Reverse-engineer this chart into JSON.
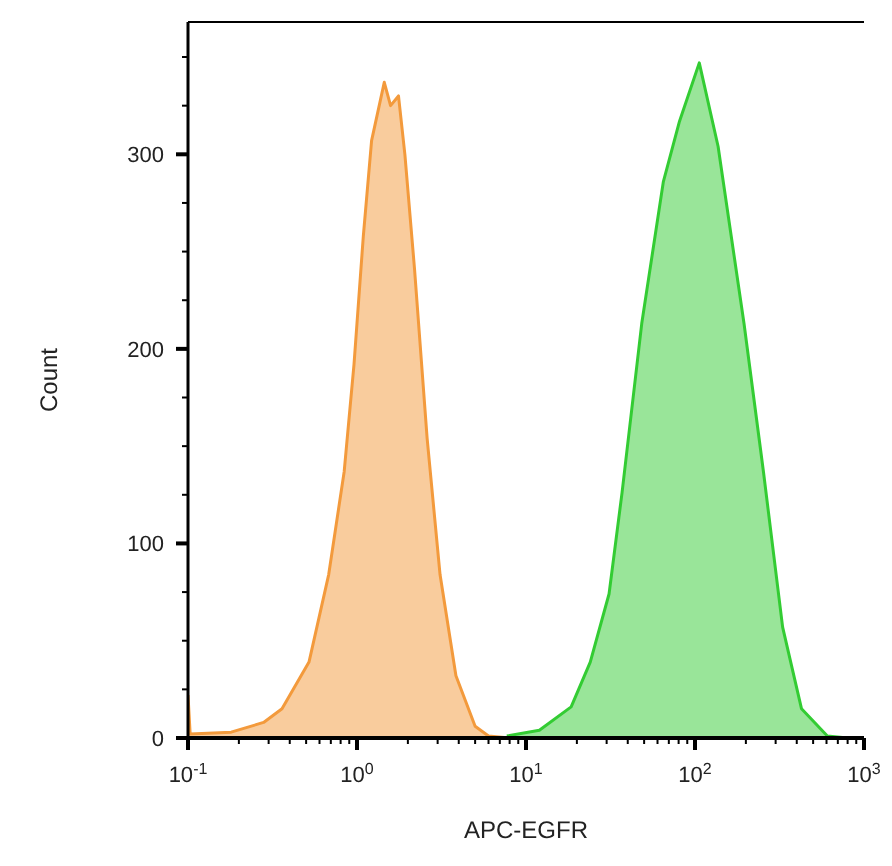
{
  "chart_data": {
    "type": "area",
    "xlabel": "APC-EGFR",
    "ylabel": "Count",
    "log": "x",
    "xlim": [
      0.1,
      1000
    ],
    "xticks": [
      {
        "value": 0.1,
        "label": "10$^{-1}$"
      },
      {
        "value": 0.2,
        "label": null
      },
      {
        "value": 0.3,
        "label": null
      },
      {
        "value": 0.4,
        "label": null
      },
      {
        "value": 0.5,
        "label": null
      },
      {
        "value": 0.6,
        "label": null
      },
      {
        "value": 0.7,
        "label": null
      },
      {
        "value": 0.8,
        "label": null
      },
      {
        "value": 0.9,
        "label": null
      },
      {
        "value": 1,
        "label": "10$^{0}$"
      },
      {
        "value": 2,
        "label": null
      },
      {
        "value": 3,
        "label": null
      },
      {
        "value": 4,
        "label": null
      },
      {
        "value": 5,
        "label": null
      },
      {
        "value": 6,
        "label": null
      },
      {
        "value": 7,
        "label": null
      },
      {
        "value": 8,
        "label": null
      },
      {
        "value": 9,
        "label": null
      },
      {
        "value": 10,
        "label": "10$^{1}$"
      },
      {
        "value": 20,
        "label": null
      },
      {
        "value": 30,
        "label": null
      },
      {
        "value": 40,
        "label": null
      },
      {
        "value": 50,
        "label": null
      },
      {
        "value": 60,
        "label": null
      },
      {
        "value": 70,
        "label": null
      },
      {
        "value": 80,
        "label": null
      },
      {
        "value": 90,
        "label": null
      },
      {
        "value": 100,
        "label": "10$^{2}$"
      },
      {
        "value": 200,
        "label": null
      },
      {
        "value": 300,
        "label": null
      },
      {
        "value": 400,
        "label": null
      },
      {
        "value": 500,
        "label": null
      },
      {
        "value": 600,
        "label": null
      },
      {
        "value": 700,
        "label": null
      },
      {
        "value": 800,
        "label": null
      },
      {
        "value": 900,
        "label": null
      },
      {
        "value": 1000,
        "label": "10$^{3}$"
      }
    ],
    "ylim": [
      0,
      368
    ],
    "yticks": [
      0,
      {
        "value": 25,
        "label": null
      },
      {
        "value": 50,
        "label": null
      },
      {
        "value": 75,
        "label": null
      },
      100,
      {
        "value": 125,
        "label": null
      },
      {
        "value": 150,
        "label": null
      },
      {
        "value": 175,
        "label": null
      },
      200,
      {
        "value": 225,
        "label": null
      },
      {
        "value": 250,
        "label": null
      },
      {
        "value": 275,
        "label": null
      },
      300,
      {
        "value": 325,
        "label": null
      },
      {
        "value": 350,
        "label": null
      }
    ],
    "series": [
      {
        "color": "#f39a3c",
        "x": [
          0.1,
          0.103,
          0.18,
          0.28,
          0.36,
          0.52,
          0.68,
          0.84,
          0.96,
          1.09,
          1.22,
          1.45,
          1.58,
          1.76,
          1.92,
          2.19,
          2.6,
          3.1,
          3.85,
          5.0,
          6.0,
          8.0
        ],
        "values": [
          22,
          2,
          3,
          8,
          15,
          39,
          84,
          137,
          192,
          258,
          307,
          337,
          325,
          330,
          300,
          241,
          154,
          84,
          32,
          6,
          1,
          0
        ]
      },
      {
        "color": "#33cc33",
        "x": [
          7.7,
          12,
          18.5,
          24,
          31,
          37,
          48.4,
          65,
          81,
          106,
          137,
          195,
          254,
          330,
          427,
          607,
          800
        ],
        "values": [
          1,
          4,
          16,
          39,
          74,
          126,
          213,
          286,
          317,
          347,
          304,
          213,
          137,
          57,
          15,
          1,
          0
        ]
      }
    ]
  }
}
